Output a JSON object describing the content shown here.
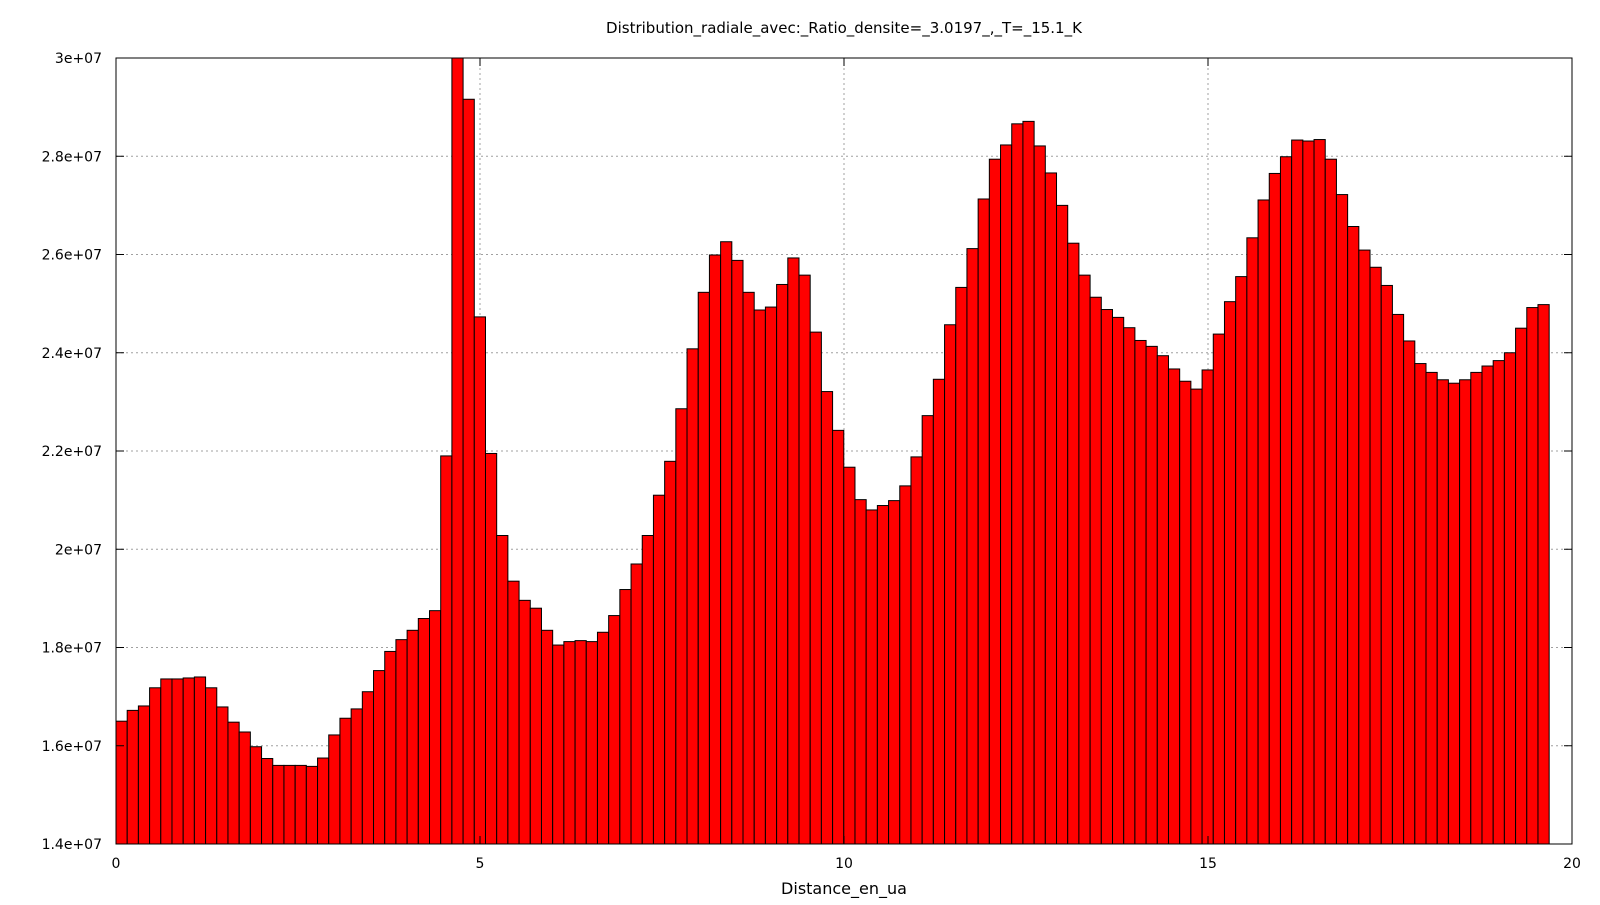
{
  "chart_data": {
    "type": "bar",
    "title": "Distribution_radiale_avec:_Ratio_densite=_3.0197_,_T=_15.1_K",
    "xlabel": "Distance_en_ua",
    "ylabel": "",
    "xlim": [
      0,
      20
    ],
    "ylim": [
      14000000,
      30000000
    ],
    "grid": true,
    "x_ticks": [
      0,
      5,
      10,
      15,
      20
    ],
    "y_ticks": [
      14000000,
      16000000,
      18000000,
      20000000,
      22000000,
      24000000,
      26000000,
      28000000,
      30000000
    ],
    "x_tick_labels": [
      "0",
      "5",
      "10",
      "15",
      "20"
    ],
    "y_tick_labels": [
      "1.4e+07",
      "1.6e+07",
      "1.8e+07",
      "2e+07",
      "2.2e+07",
      "2.4e+07",
      "2.6e+07",
      "2.8e+07",
      "3e+07"
    ],
    "bin_width": 0.1538,
    "bar_color": "#ff0000",
    "values": [
      16500000,
      16720000,
      16810000,
      17180000,
      17360000,
      17360000,
      17380000,
      17400000,
      17180000,
      16790000,
      16480000,
      16280000,
      15980000,
      15740000,
      15600000,
      15600000,
      15600000,
      15580000,
      15750000,
      16220000,
      16560000,
      16750000,
      17100000,
      17530000,
      17920000,
      18160000,
      18350000,
      18590000,
      18750000,
      21900000,
      30000000,
      29160000,
      24730000,
      21950000,
      20280000,
      19350000,
      18960000,
      18800000,
      18350000,
      18050000,
      18120000,
      18140000,
      18120000,
      18310000,
      18650000,
      19180000,
      19700000,
      20280000,
      21100000,
      21790000,
      22860000,
      24080000,
      25230000,
      25990000,
      26260000,
      25880000,
      25230000,
      24870000,
      24930000,
      25390000,
      25930000,
      25580000,
      24420000,
      23210000,
      22420000,
      21670000,
      21010000,
      20800000,
      20890000,
      20990000,
      21290000,
      21880000,
      22720000,
      23460000,
      24570000,
      25330000,
      26120000,
      27130000,
      27940000,
      28230000,
      28660000,
      28710000,
      28210000,
      27660000,
      27000000,
      26230000,
      25580000,
      25130000,
      24880000,
      24720000,
      24510000,
      24250000,
      24130000,
      23940000,
      23670000,
      23420000,
      23260000,
      23650000,
      24380000,
      25040000,
      25550000,
      26340000,
      27110000,
      27650000,
      27990000,
      28330000,
      28310000,
      28340000,
      27940000,
      27220000,
      26570000,
      26090000,
      25740000,
      25370000,
      24780000,
      24240000,
      23780000,
      23600000,
      23450000,
      23380000,
      23450000,
      23600000,
      23730000,
      23840000,
      24000000,
      24500000,
      24920000,
      24980000
    ]
  }
}
